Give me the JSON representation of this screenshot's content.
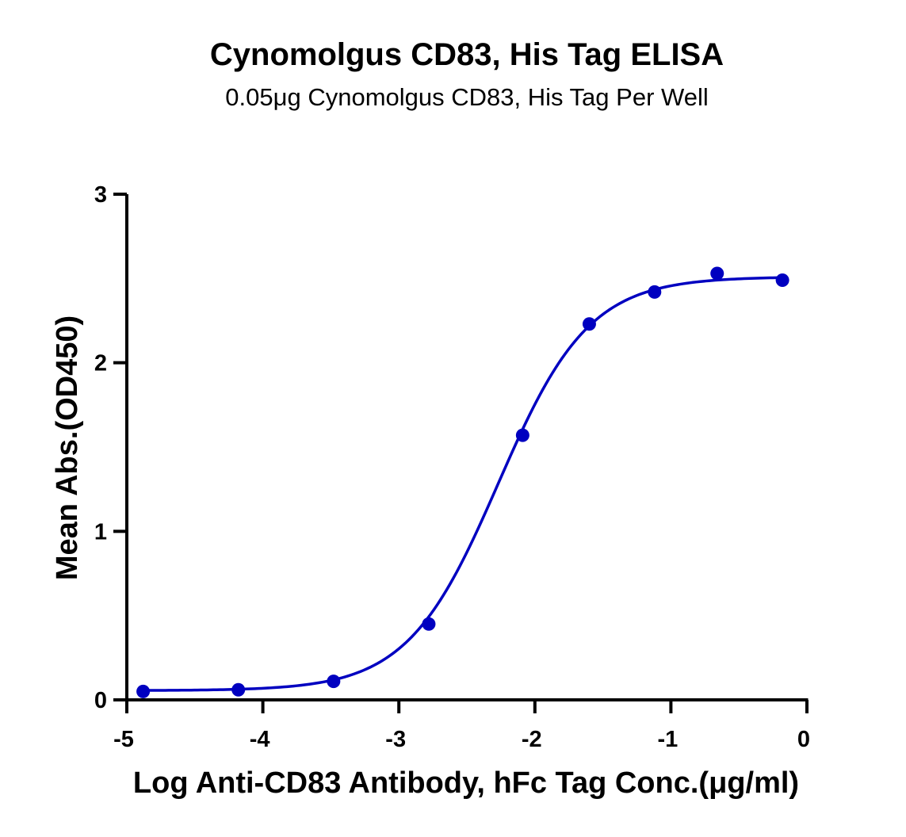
{
  "chart_data": {
    "type": "scatter",
    "title": "Cynomolgus CD83, His Tag ELISA",
    "subtitle": "0.05μg Cynomolgus CD83, His Tag Per Well",
    "xlabel": "Log Anti-CD83 Antibody, hFc Tag Conc.(μg/ml)",
    "ylabel": "Mean Abs.(OD450)",
    "xlim": [
      -5,
      0
    ],
    "ylim": [
      0,
      3
    ],
    "x_ticks": [
      "-5",
      "-4",
      "-3",
      "-2",
      "-1",
      "0"
    ],
    "y_ticks": [
      "0",
      "1",
      "2",
      "3"
    ],
    "x_tick_values": [
      -5,
      -4,
      -3,
      -2,
      -1,
      0
    ],
    "y_tick_values": [
      0,
      1,
      2,
      3
    ],
    "grid": false,
    "series": [
      {
        "x": [
          -4.88,
          -4.18,
          -3.48,
          -2.78,
          -2.09,
          -1.6,
          -1.12,
          -0.66,
          -0.18
        ],
        "y": [
          0.05,
          0.06,
          0.11,
          0.45,
          1.57,
          2.23,
          2.42,
          2.53,
          2.49
        ],
        "color": "#0000c0",
        "fit": {
          "model": "4PL",
          "bottom": 0.055,
          "top": 2.51,
          "logEC50": -2.27,
          "hill": 1.3
        }
      }
    ]
  }
}
